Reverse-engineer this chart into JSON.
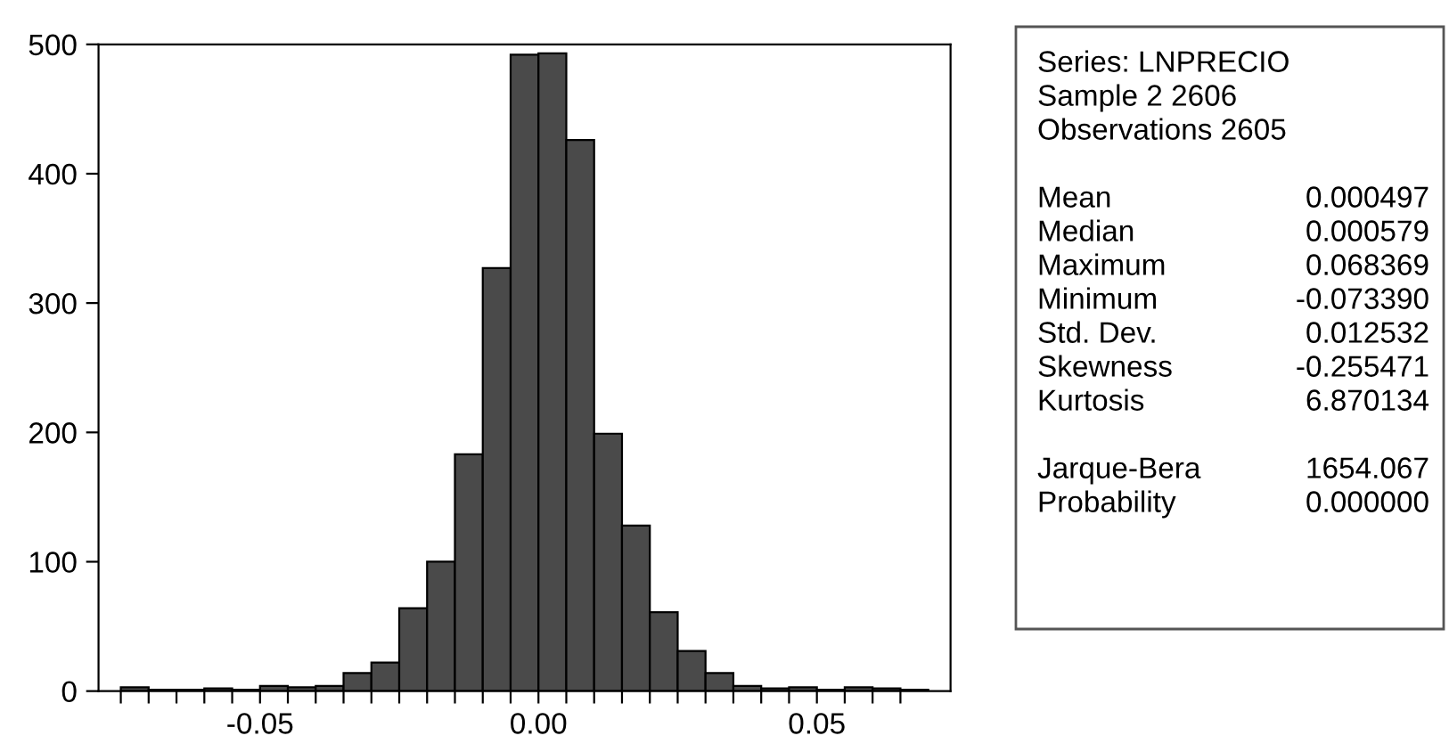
{
  "chart_data": {
    "type": "histogram",
    "bins": [
      -0.075,
      -0.07,
      -0.065,
      -0.06,
      -0.055,
      -0.05,
      -0.045,
      -0.04,
      -0.035,
      -0.03,
      -0.025,
      -0.02,
      -0.015,
      -0.01,
      -0.005,
      0,
      0.005,
      0.01,
      0.015,
      0.02,
      0.025,
      0.03,
      0.035,
      0.04,
      0.045,
      0.05,
      0.055,
      0.06,
      0.065,
      0.07
    ],
    "values": [
      3,
      1,
      1,
      2,
      1,
      4,
      3,
      4,
      14,
      22,
      64,
      100,
      183,
      327,
      492,
      493,
      426,
      199,
      128,
      61,
      31,
      14,
      4,
      2,
      3,
      1,
      3,
      2,
      1
    ],
    "color": "#4a4a4a",
    "xlim": [
      -0.079,
      0.074
    ],
    "xticks": [
      {
        "value": -0.075,
        "label": null
      },
      {
        "value": -0.07,
        "label": null
      },
      {
        "value": -0.065,
        "label": null
      },
      {
        "value": -0.06,
        "label": null
      },
      {
        "value": -0.055,
        "label": null
      },
      {
        "value": -0.05,
        "label": "-0.05"
      },
      {
        "value": -0.045,
        "label": null
      },
      {
        "value": -0.04,
        "label": null
      },
      {
        "value": -0.035,
        "label": null
      },
      {
        "value": -0.03,
        "label": null
      },
      {
        "value": -0.025,
        "label": null
      },
      {
        "value": -0.02,
        "label": null
      },
      {
        "value": -0.015,
        "label": null
      },
      {
        "value": -0.01,
        "label": null
      },
      {
        "value": -0.005,
        "label": null
      },
      {
        "value": 0,
        "label": "0.00"
      },
      {
        "value": 0.005,
        "label": null
      },
      {
        "value": 0.01,
        "label": null
      },
      {
        "value": 0.015,
        "label": null
      },
      {
        "value": 0.02,
        "label": null
      },
      {
        "value": 0.025,
        "label": null
      },
      {
        "value": 0.03,
        "label": null
      },
      {
        "value": 0.035,
        "label": null
      },
      {
        "value": 0.04,
        "label": null
      },
      {
        "value": 0.045,
        "label": null
      },
      {
        "value": 0.05,
        "label": "0.05"
      },
      {
        "value": 0.055,
        "label": null
      },
      {
        "value": 0.06,
        "label": null
      },
      {
        "value": 0.065,
        "label": null
      }
    ],
    "ylim": [
      0,
      500
    ],
    "yticks": [
      0,
      100,
      200,
      300,
      400,
      500
    ],
    "grid": false,
    "legend": false,
    "annotations": [
      "Series: LNPRECIO",
      "Sample 2 2606",
      "Observations 2605",
      "Mean",
      "0.000497",
      "Median",
      "0.000579",
      "Maximum",
      "0.068369",
      "Minimum",
      "-0.073390",
      "Std. Dev.",
      "0.012532",
      "Skewness",
      "-0.255471",
      "Kurtosis",
      "6.870134",
      "Jarque-Bera",
      "1654.067",
      "Probability",
      "0.000000"
    ]
  }
}
